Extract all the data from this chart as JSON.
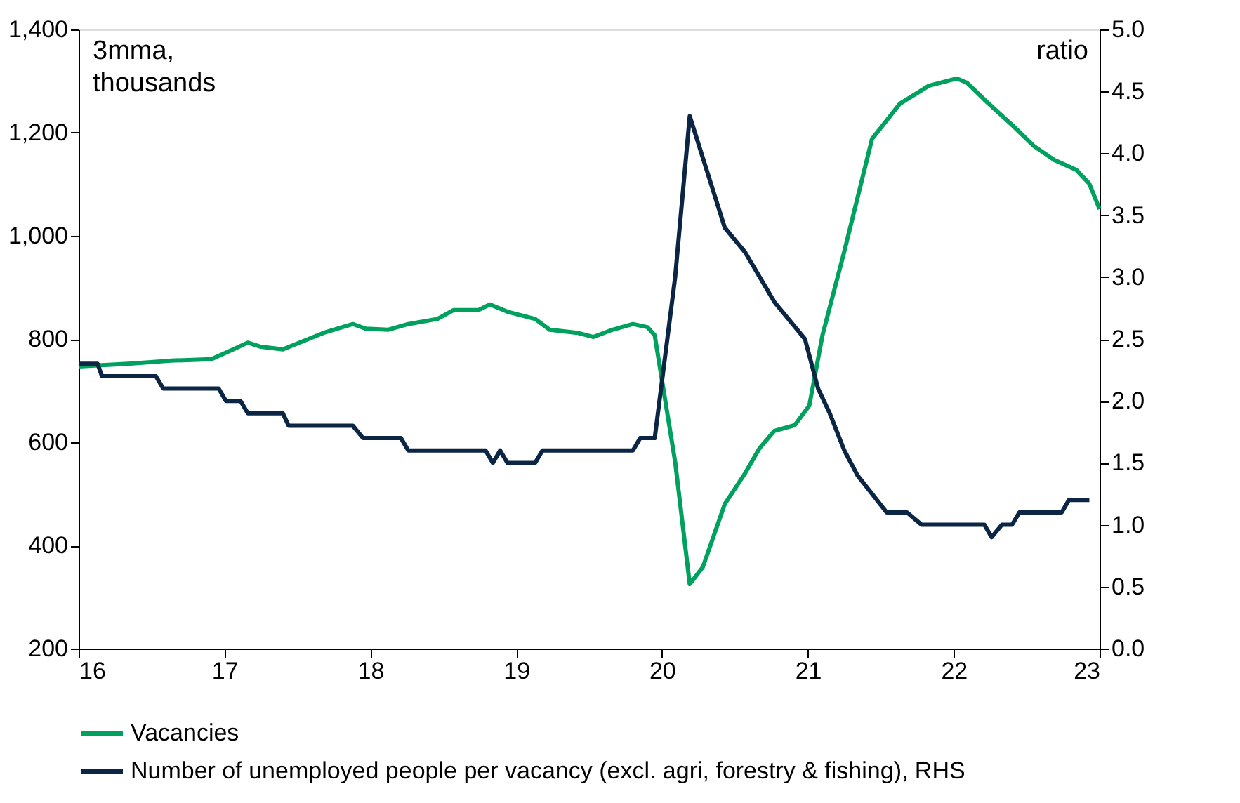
{
  "chart_data": {
    "type": "line",
    "ylabel": "3mma,\nthousands",
    "y2label": "ratio",
    "xlim": [
      16,
      23
    ],
    "xticks": [
      16,
      17,
      18,
      19,
      20,
      21,
      22,
      23
    ],
    "ylim": [
      200,
      1400
    ],
    "yticks": [
      {
        "value": 200,
        "label": "200"
      },
      {
        "value": 400,
        "label": "400"
      },
      {
        "value": 600,
        "label": "600"
      },
      {
        "value": 800,
        "label": "800"
      },
      {
        "value": 1000,
        "label": "1,000"
      },
      {
        "value": 1200,
        "label": "1,200"
      },
      {
        "value": 1400,
        "label": "1,400"
      }
    ],
    "y2lim": [
      0,
      5
    ],
    "y2ticks": [
      {
        "value": 0,
        "label": "0.0"
      },
      {
        "value": 0.5,
        "label": "0.5"
      },
      {
        "value": 1,
        "label": "1.0"
      },
      {
        "value": 1.5,
        "label": "1.5"
      },
      {
        "value": 2,
        "label": "2.0"
      },
      {
        "value": 2.5,
        "label": "2.5"
      },
      {
        "value": 3,
        "label": "3.0"
      },
      {
        "value": 3.5,
        "label": "3.5"
      },
      {
        "value": 4,
        "label": "4.0"
      },
      {
        "value": 4.5,
        "label": "4.5"
      },
      {
        "value": 5,
        "label": "5.0"
      }
    ],
    "grid": false,
    "legend": "bottom",
    "marker": "none",
    "line_style": "solid",
    "series": [
      {
        "name": "Vacancies",
        "color": "#00a15f",
        "x": [
          16.0,
          16.34,
          16.63,
          16.91,
          17.06,
          17.16,
          17.25,
          17.4,
          17.54,
          17.68,
          17.88,
          17.97,
          18.12,
          18.26,
          18.46,
          18.57,
          18.74,
          18.82,
          18.94,
          19.13,
          19.23,
          19.42,
          19.53,
          19.66,
          19.8,
          19.9,
          19.95,
          20.09,
          20.19,
          20.28,
          20.43,
          20.57,
          20.67,
          20.77,
          20.91,
          21.01,
          21.1,
          21.25,
          21.44,
          21.63,
          21.83,
          22.02,
          22.09,
          22.21,
          22.4,
          22.55,
          22.69,
          22.84,
          22.93,
          23.0
        ],
        "values": [
          747,
          752,
          758,
          761,
          780,
          793,
          785,
          780,
          796,
          812,
          829,
          820,
          818,
          829,
          839,
          856,
          856,
          867,
          853,
          839,
          818,
          812,
          804,
          818,
          829,
          823,
          807,
          562,
          325,
          358,
          480,
          540,
          589,
          622,
          633,
          671,
          807,
          970,
          1188,
          1256,
          1291,
          1305,
          1297,
          1264,
          1215,
          1174,
          1147,
          1128,
          1101,
          1052
        ]
      },
      {
        "name": "Number of unemployed people per vacancy (excl. agri, forestry & fishing), RHS",
        "color": "#0b2545",
        "axis": "y2",
        "x": [
          16.0,
          16.13,
          16.16,
          16.53,
          16.58,
          16.96,
          17.01,
          17.11,
          17.16,
          17.4,
          17.44,
          17.88,
          17.95,
          18.21,
          18.26,
          18.79,
          18.84,
          18.89,
          18.94,
          19.13,
          19.18,
          19.8,
          19.85,
          19.95,
          20.09,
          20.19,
          20.43,
          20.57,
          20.77,
          20.98,
          21.07,
          21.15,
          21.25,
          21.34,
          21.54,
          21.68,
          21.78,
          22.21,
          22.26,
          22.33,
          22.4,
          22.45,
          22.74,
          22.79,
          22.93
        ],
        "values": [
          2.3,
          2.3,
          2.2,
          2.2,
          2.1,
          2.1,
          2.0,
          2.0,
          1.9,
          1.9,
          1.8,
          1.8,
          1.7,
          1.7,
          1.6,
          1.6,
          1.5,
          1.6,
          1.5,
          1.5,
          1.6,
          1.6,
          1.7,
          1.7,
          3.0,
          4.3,
          3.4,
          3.2,
          2.8,
          2.5,
          2.1,
          1.9,
          1.6,
          1.4,
          1.1,
          1.1,
          1.0,
          1.0,
          0.9,
          1.0,
          1.0,
          1.1,
          1.1,
          1.2,
          1.2
        ]
      }
    ]
  }
}
